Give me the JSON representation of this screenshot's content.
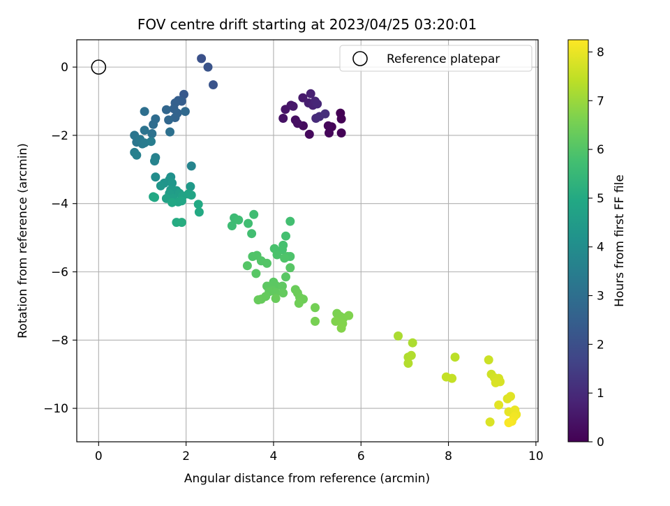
{
  "chart_data": {
    "type": "scatter",
    "title": "FOV centre drift starting at 2023/04/25 03:20:01",
    "xlabel": "Angular distance from reference (arcmin)",
    "ylabel": "Rotation from reference (arcmin)",
    "xlim": [
      -0.5,
      10.05
    ],
    "ylim": [
      -10.98,
      0.8
    ],
    "xticks": [
      0,
      2,
      4,
      6,
      8,
      10
    ],
    "yticks": [
      0,
      -2,
      -4,
      -6,
      -8,
      -10
    ],
    "xtick_labels": [
      "0",
      "2",
      "4",
      "6",
      "8",
      "10"
    ],
    "ytick_labels": [
      "0",
      "−2",
      "−4",
      "−6",
      "−8",
      "−10"
    ],
    "grid": true,
    "legend": {
      "placement": "upper-right",
      "entries": [
        "Reference platepar"
      ]
    },
    "reference_point": {
      "x": 0,
      "y": 0,
      "label": "Reference platepar"
    },
    "colorbar": {
      "label": "Hours from first FF file",
      "colormap": "viridis",
      "range": [
        0,
        8.25
      ],
      "ticks": [
        0,
        1,
        2,
        3,
        4,
        5,
        6,
        7,
        8
      ],
      "tick_labels": [
        "0",
        "1",
        "2",
        "3",
        "4",
        "5",
        "6",
        "7",
        "8"
      ]
    },
    "points": [
      {
        "x": 5.53,
        "y": -1.35,
        "h": 0.0
      },
      {
        "x": 5.55,
        "y": -1.52,
        "h": 0.02
      },
      {
        "x": 5.55,
        "y": -1.93,
        "h": 0.05
      },
      {
        "x": 5.33,
        "y": -1.75,
        "h": 0.08
      },
      {
        "x": 5.27,
        "y": -1.93,
        "h": 0.12
      },
      {
        "x": 5.25,
        "y": -1.72,
        "h": 0.15
      },
      {
        "x": 4.82,
        "y": -1.97,
        "h": 0.2
      },
      {
        "x": 4.68,
        "y": -1.72,
        "h": 0.25
      },
      {
        "x": 4.5,
        "y": -1.55,
        "h": 0.3
      },
      {
        "x": 4.55,
        "y": -1.65,
        "h": 0.35
      },
      {
        "x": 4.22,
        "y": -1.5,
        "h": 0.4
      },
      {
        "x": 4.27,
        "y": -1.24,
        "h": 0.45
      },
      {
        "x": 4.4,
        "y": -1.12,
        "h": 0.5
      },
      {
        "x": 4.45,
        "y": -1.15,
        "h": 0.55
      },
      {
        "x": 4.67,
        "y": -0.9,
        "h": 0.6
      },
      {
        "x": 4.8,
        "y": -1.05,
        "h": 0.7
      },
      {
        "x": 4.85,
        "y": -0.78,
        "h": 0.75
      },
      {
        "x": 4.9,
        "y": -1.12,
        "h": 0.8
      },
      {
        "x": 4.95,
        "y": -1.0,
        "h": 0.85
      },
      {
        "x": 5.0,
        "y": -1.08,
        "h": 0.9
      },
      {
        "x": 4.97,
        "y": -1.5,
        "h": 1.0
      },
      {
        "x": 5.05,
        "y": -1.45,
        "h": 1.05
      },
      {
        "x": 5.18,
        "y": -1.37,
        "h": 1.1
      },
      {
        "x": 2.35,
        "y": 0.25,
        "h": 2.05
      },
      {
        "x": 2.5,
        "y": 0.0,
        "h": 2.1
      },
      {
        "x": 2.62,
        "y": -0.52,
        "h": 2.15
      },
      {
        "x": 1.95,
        "y": -0.8,
        "h": 2.3
      },
      {
        "x": 1.9,
        "y": -1.0,
        "h": 2.4
      },
      {
        "x": 1.82,
        "y": -0.98,
        "h": 2.45
      },
      {
        "x": 1.75,
        "y": -1.05,
        "h": 2.5
      },
      {
        "x": 1.72,
        "y": -1.22,
        "h": 2.55
      },
      {
        "x": 1.8,
        "y": -1.35,
        "h": 2.6
      },
      {
        "x": 1.75,
        "y": -1.48,
        "h": 2.65
      },
      {
        "x": 1.55,
        "y": -1.25,
        "h": 2.7
      },
      {
        "x": 1.6,
        "y": -1.55,
        "h": 2.75
      },
      {
        "x": 1.98,
        "y": -1.3,
        "h": 2.8
      },
      {
        "x": 1.3,
        "y": -1.52,
        "h": 2.9
      },
      {
        "x": 1.25,
        "y": -1.68,
        "h": 2.95
      },
      {
        "x": 1.05,
        "y": -1.3,
        "h": 3.0
      },
      {
        "x": 1.63,
        "y": -1.9,
        "h": 3.05
      },
      {
        "x": 1.22,
        "y": -1.95,
        "h": 3.1
      },
      {
        "x": 1.05,
        "y": -1.85,
        "h": 3.15
      },
      {
        "x": 0.82,
        "y": -2.0,
        "h": 3.2
      },
      {
        "x": 0.87,
        "y": -2.2,
        "h": 3.25
      },
      {
        "x": 0.95,
        "y": -2.12,
        "h": 3.3
      },
      {
        "x": 1.0,
        "y": -2.25,
        "h": 3.35
      },
      {
        "x": 1.05,
        "y": -2.22,
        "h": 3.4
      },
      {
        "x": 1.2,
        "y": -2.18,
        "h": 3.45
      },
      {
        "x": 0.82,
        "y": -2.5,
        "h": 3.5
      },
      {
        "x": 0.87,
        "y": -2.58,
        "h": 3.55
      },
      {
        "x": 1.3,
        "y": -2.65,
        "h": 3.6
      },
      {
        "x": 1.28,
        "y": -2.75,
        "h": 3.65
      },
      {
        "x": 2.12,
        "y": -2.9,
        "h": 3.7
      },
      {
        "x": 1.3,
        "y": -3.22,
        "h": 4.0
      },
      {
        "x": 1.65,
        "y": -3.22,
        "h": 4.1
      },
      {
        "x": 1.62,
        "y": -3.3,
        "h": 4.2
      },
      {
        "x": 1.5,
        "y": -3.4,
        "h": 4.25
      },
      {
        "x": 1.42,
        "y": -3.48,
        "h": 4.3
      },
      {
        "x": 1.68,
        "y": -3.4,
        "h": 4.35
      },
      {
        "x": 2.1,
        "y": -3.5,
        "h": 4.4
      },
      {
        "x": 1.65,
        "y": -3.6,
        "h": 4.45
      },
      {
        "x": 1.78,
        "y": -3.62,
        "h": 4.5
      },
      {
        "x": 1.62,
        "y": -3.7,
        "h": 4.55
      },
      {
        "x": 1.85,
        "y": -3.7,
        "h": 4.6
      },
      {
        "x": 1.7,
        "y": -3.85,
        "h": 4.65
      },
      {
        "x": 1.55,
        "y": -3.85,
        "h": 4.7
      },
      {
        "x": 1.92,
        "y": -3.78,
        "h": 4.75
      },
      {
        "x": 2.05,
        "y": -3.72,
        "h": 4.8
      },
      {
        "x": 2.12,
        "y": -3.75,
        "h": 4.82
      },
      {
        "x": 1.82,
        "y": -3.95,
        "h": 4.85
      },
      {
        "x": 1.9,
        "y": -3.92,
        "h": 4.88
      },
      {
        "x": 1.68,
        "y": -3.97,
        "h": 4.9
      },
      {
        "x": 1.25,
        "y": -3.8,
        "h": 4.92
      },
      {
        "x": 1.28,
        "y": -3.82,
        "h": 4.95
      },
      {
        "x": 2.28,
        "y": -4.02,
        "h": 4.98
      },
      {
        "x": 2.3,
        "y": -4.25,
        "h": 5.0
      },
      {
        "x": 1.78,
        "y": -4.55,
        "h": 5.05
      },
      {
        "x": 1.9,
        "y": -4.55,
        "h": 5.1
      },
      {
        "x": 3.1,
        "y": -4.42,
        "h": 5.6
      },
      {
        "x": 3.05,
        "y": -4.65,
        "h": 5.62
      },
      {
        "x": 3.2,
        "y": -4.48,
        "h": 5.65
      },
      {
        "x": 3.55,
        "y": -4.32,
        "h": 5.68
      },
      {
        "x": 3.42,
        "y": -4.58,
        "h": 5.7
      },
      {
        "x": 3.5,
        "y": -4.88,
        "h": 5.72
      },
      {
        "x": 4.38,
        "y": -4.52,
        "h": 5.75
      },
      {
        "x": 4.28,
        "y": -4.95,
        "h": 5.78
      },
      {
        "x": 4.22,
        "y": -5.22,
        "h": 5.8
      },
      {
        "x": 4.2,
        "y": -5.35,
        "h": 5.82
      },
      {
        "x": 4.02,
        "y": -5.32,
        "h": 5.85
      },
      {
        "x": 4.08,
        "y": -5.5,
        "h": 5.88
      },
      {
        "x": 4.32,
        "y": -5.55,
        "h": 5.9
      },
      {
        "x": 4.38,
        "y": -5.55,
        "h": 5.92
      },
      {
        "x": 4.25,
        "y": -5.6,
        "h": 5.94
      },
      {
        "x": 3.52,
        "y": -5.55,
        "h": 5.96
      },
      {
        "x": 3.62,
        "y": -5.52,
        "h": 5.98
      },
      {
        "x": 3.72,
        "y": -5.68,
        "h": 6.0
      },
      {
        "x": 3.85,
        "y": -5.75,
        "h": 6.02
      },
      {
        "x": 3.4,
        "y": -5.82,
        "h": 6.04
      },
      {
        "x": 4.38,
        "y": -5.88,
        "h": 6.06
      },
      {
        "x": 3.6,
        "y": -6.05,
        "h": 6.08
      },
      {
        "x": 4.28,
        "y": -6.15,
        "h": 6.1
      },
      {
        "x": 4.0,
        "y": -6.3,
        "h": 6.12
      },
      {
        "x": 4.05,
        "y": -6.4,
        "h": 6.14
      },
      {
        "x": 3.85,
        "y": -6.42,
        "h": 6.16
      },
      {
        "x": 4.2,
        "y": -6.42,
        "h": 6.18
      },
      {
        "x": 3.98,
        "y": -6.55,
        "h": 6.2
      },
      {
        "x": 3.9,
        "y": -6.58,
        "h": 6.22
      },
      {
        "x": 4.05,
        "y": -6.6,
        "h": 6.24
      },
      {
        "x": 4.22,
        "y": -6.62,
        "h": 6.26
      },
      {
        "x": 3.82,
        "y": -6.72,
        "h": 6.28
      },
      {
        "x": 3.72,
        "y": -6.8,
        "h": 6.3
      },
      {
        "x": 3.65,
        "y": -6.82,
        "h": 6.32
      },
      {
        "x": 4.05,
        "y": -6.78,
        "h": 6.34
      },
      {
        "x": 4.5,
        "y": -6.52,
        "h": 6.36
      },
      {
        "x": 4.55,
        "y": -6.62,
        "h": 6.38
      },
      {
        "x": 4.6,
        "y": -6.75,
        "h": 6.4
      },
      {
        "x": 4.68,
        "y": -6.8,
        "h": 6.42
      },
      {
        "x": 4.58,
        "y": -6.92,
        "h": 6.44
      },
      {
        "x": 4.95,
        "y": -7.05,
        "h": 6.5
      },
      {
        "x": 4.95,
        "y": -7.45,
        "h": 6.55
      },
      {
        "x": 5.45,
        "y": -7.22,
        "h": 6.6
      },
      {
        "x": 5.52,
        "y": -7.3,
        "h": 6.62
      },
      {
        "x": 5.6,
        "y": -7.35,
        "h": 6.64
      },
      {
        "x": 5.72,
        "y": -7.28,
        "h": 6.66
      },
      {
        "x": 5.42,
        "y": -7.45,
        "h": 6.68
      },
      {
        "x": 5.58,
        "y": -7.52,
        "h": 6.7
      },
      {
        "x": 5.55,
        "y": -7.65,
        "h": 6.72
      },
      {
        "x": 6.85,
        "y": -7.88,
        "h": 7.2
      },
      {
        "x": 7.18,
        "y": -8.08,
        "h": 7.22
      },
      {
        "x": 7.08,
        "y": -8.5,
        "h": 7.25
      },
      {
        "x": 7.15,
        "y": -8.45,
        "h": 7.28
      },
      {
        "x": 7.08,
        "y": -8.68,
        "h": 7.3
      },
      {
        "x": 8.15,
        "y": -8.5,
        "h": 7.4
      },
      {
        "x": 7.95,
        "y": -9.08,
        "h": 7.5
      },
      {
        "x": 8.08,
        "y": -9.12,
        "h": 7.52
      },
      {
        "x": 8.92,
        "y": -8.58,
        "h": 7.6
      },
      {
        "x": 8.98,
        "y": -9.0,
        "h": 7.65
      },
      {
        "x": 9.05,
        "y": -9.1,
        "h": 7.7
      },
      {
        "x": 9.1,
        "y": -9.15,
        "h": 7.72
      },
      {
        "x": 9.15,
        "y": -9.12,
        "h": 7.74
      },
      {
        "x": 9.18,
        "y": -9.22,
        "h": 7.76
      },
      {
        "x": 9.08,
        "y": -9.25,
        "h": 7.78
      },
      {
        "x": 8.95,
        "y": -10.4,
        "h": 7.8
      },
      {
        "x": 9.35,
        "y": -9.72,
        "h": 7.85
      },
      {
        "x": 9.42,
        "y": -9.65,
        "h": 7.88
      },
      {
        "x": 9.15,
        "y": -9.9,
        "h": 7.9
      },
      {
        "x": 9.38,
        "y": -10.1,
        "h": 7.95
      },
      {
        "x": 9.52,
        "y": -10.05,
        "h": 8.0
      },
      {
        "x": 9.55,
        "y": -10.18,
        "h": 8.05
      },
      {
        "x": 9.5,
        "y": -10.25,
        "h": 8.1
      },
      {
        "x": 9.45,
        "y": -10.38,
        "h": 8.15
      },
      {
        "x": 9.38,
        "y": -10.42,
        "h": 8.2
      }
    ]
  }
}
